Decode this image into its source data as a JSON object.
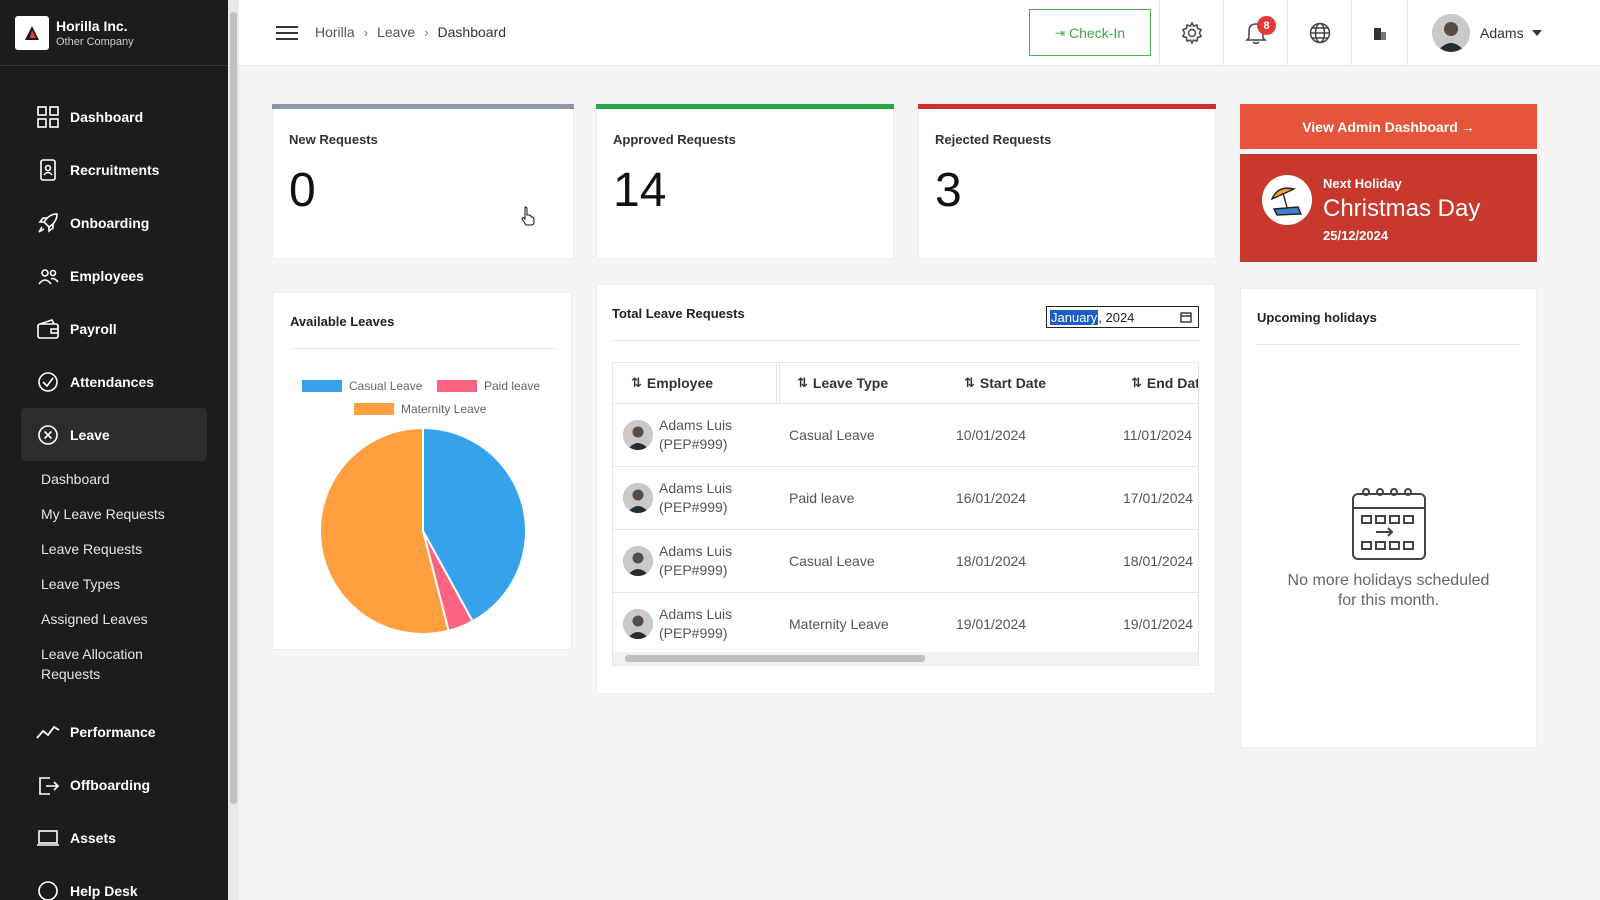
{
  "brand": {
    "name": "Horilla Inc.",
    "sub": "Other Company"
  },
  "sidebar": {
    "items": [
      {
        "label": "Dashboard",
        "icon": "dashboard-icon"
      },
      {
        "label": "Recruitments",
        "icon": "recruitment-icon"
      },
      {
        "label": "Onboarding",
        "icon": "rocket-icon"
      },
      {
        "label": "Employees",
        "icon": "people-icon"
      },
      {
        "label": "Payroll",
        "icon": "wallet-icon"
      },
      {
        "label": "Attendances",
        "icon": "check-circle-icon"
      },
      {
        "label": "Leave",
        "icon": "close-circle-icon"
      },
      {
        "label": "Performance",
        "icon": "trend-icon"
      },
      {
        "label": "Offboarding",
        "icon": "exit-icon"
      },
      {
        "label": "Assets",
        "icon": "laptop-icon"
      },
      {
        "label": "Help Desk",
        "icon": "help-icon"
      }
    ],
    "leave_sub": [
      "Dashboard",
      "My Leave Requests",
      "Leave Requests",
      "Leave Types",
      "Assigned Leaves",
      "Leave Allocation Requests"
    ]
  },
  "header": {
    "breadcrumb": [
      "Horilla",
      "Leave",
      "Dashboard"
    ],
    "checkin": "Check-In",
    "notifications": "8",
    "user": "Adams"
  },
  "stats": {
    "new": {
      "label": "New Requests",
      "value": "0",
      "color": "#8c96a8"
    },
    "approved": {
      "label": "Approved Requests",
      "value": "14",
      "color": "#27a844"
    },
    "rejected": {
      "label": "Rejected Requests",
      "value": "3",
      "color": "#d12f2f"
    }
  },
  "admin_button": "View Admin Dashboard",
  "holiday": {
    "title": "Next Holiday",
    "name": "Christmas Day",
    "date": "25/12/2024"
  },
  "available_leaves": {
    "title": "Available Leaves"
  },
  "chart_data": {
    "type": "pie",
    "legend": [
      "Casual Leave",
      "Paid leave",
      "Maternity Leave"
    ],
    "values": [
      42,
      4,
      54
    ],
    "colors": [
      "#36a2eb",
      "#ff6384",
      "#ff9f40"
    ],
    "legend_position": "top"
  },
  "total_leave": {
    "title": "Total Leave Requests",
    "month_selected": "January",
    "month_year": "2024",
    "columns": [
      "Employee",
      "Leave Type",
      "Start Date",
      "End Dat"
    ],
    "rows": [
      {
        "name": "Adams Luis",
        "id": "(PEP#999)",
        "type": "Casual Leave",
        "start": "10/01/2024",
        "end": "11/01/2024"
      },
      {
        "name": "Adams Luis",
        "id": "(PEP#999)",
        "type": "Paid leave",
        "start": "16/01/2024",
        "end": "17/01/2024"
      },
      {
        "name": "Adams Luis",
        "id": "(PEP#999)",
        "type": "Casual Leave",
        "start": "18/01/2024",
        "end": "18/01/2024"
      },
      {
        "name": "Adams Luis",
        "id": "(PEP#999)",
        "type": "Maternity Leave",
        "start": "19/01/2024",
        "end": "19/01/2024"
      }
    ]
  },
  "upcoming": {
    "title": "Upcoming holidays",
    "empty_line1": "No more holidays scheduled",
    "empty_line2": "for this month."
  }
}
